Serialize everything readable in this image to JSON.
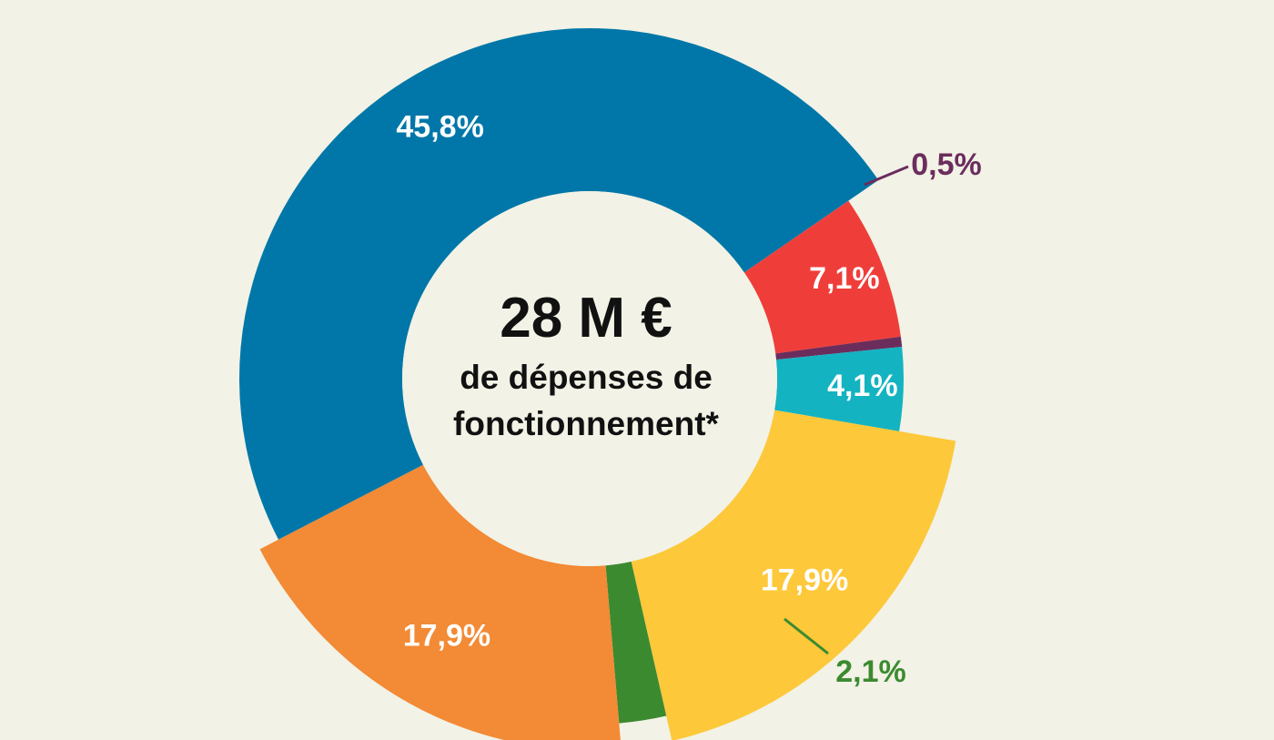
{
  "center": {
    "amount": "28 M €",
    "caption_line1": "de dépenses de",
    "caption_line2": "fonctionnement*"
  },
  "colors": {
    "background": "#f2f2e6",
    "center_fill": "#f2f2e6"
  },
  "chart_data": {
    "type": "pie",
    "variant": "donut",
    "title": "",
    "slices": [
      {
        "label": "7,1%",
        "value": 7.1,
        "color": "#ef3e3a",
        "label_color": "#ffffff"
      },
      {
        "label": "0,5%",
        "value": 0.5,
        "color": "#6b2d5c",
        "label_color": "#6b2d5c"
      },
      {
        "label": "4,1%",
        "value": 4.1,
        "color": "#14b3c1",
        "label_color": "#ffffff"
      },
      {
        "label": "17,9%",
        "value": 17.9,
        "color": "#fdc83a",
        "label_color": "#ffffff"
      },
      {
        "label": "2,1%",
        "value": 2.1,
        "color": "#3c8a30",
        "label_color": "#3c8a30"
      },
      {
        "label": "17,9%",
        "value": 17.9,
        "color": "#f38a35",
        "label_color": "#ffffff"
      },
      {
        "label": "45,8%",
        "value": 45.8,
        "color": "#0077a8",
        "label_color": "#ffffff"
      }
    ]
  }
}
